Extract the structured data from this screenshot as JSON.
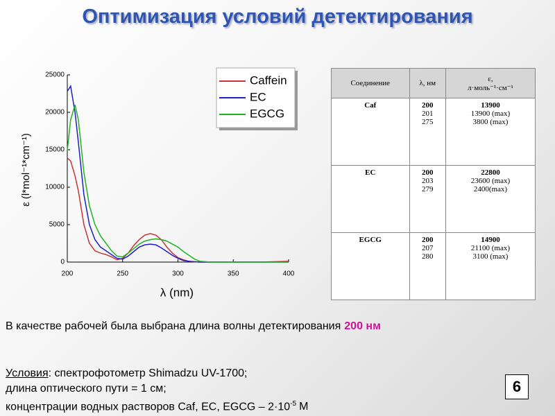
{
  "title": "Оптимизация условий детектирования",
  "chart_data": {
    "type": "line",
    "x_label": "λ (nm)",
    "y_label": "ε (l*mol⁻¹*cm⁻¹)",
    "x": [
      200,
      203,
      207,
      210,
      215,
      220,
      225,
      230,
      235,
      240,
      245,
      250,
      255,
      260,
      265,
      270,
      275,
      280,
      285,
      290,
      295,
      300,
      305,
      310,
      315,
      320,
      330,
      350,
      375,
      400
    ],
    "series": [
      {
        "name": "Caffein",
        "color": "#c83232",
        "values": [
          13900,
          13500,
          11500,
          9500,
          5000,
          2500,
          1500,
          1200,
          1000,
          700,
          300,
          500,
          1200,
          2200,
          3000,
          3600,
          3800,
          3600,
          3000,
          2000,
          1200,
          600,
          300,
          100,
          50,
          0,
          0,
          0,
          0,
          100
        ]
      },
      {
        "name": "EC",
        "color": "#1e1ec8",
        "values": [
          22800,
          23500,
          20000,
          16000,
          9000,
          5000,
          3000,
          2000,
          1500,
          1000,
          500,
          400,
          800,
          1400,
          2000,
          2300,
          2400,
          2300,
          1900,
          1400,
          900,
          500,
          200,
          100,
          50,
          0,
          0,
          0,
          0,
          0
        ]
      },
      {
        "name": "EGCG",
        "color": "#1eb41e",
        "values": [
          14900,
          19000,
          21000,
          19000,
          12000,
          7500,
          5000,
          3500,
          2500,
          1500,
          800,
          700,
          1200,
          1800,
          2400,
          2800,
          3000,
          3100,
          3000,
          2800,
          2400,
          2000,
          1400,
          900,
          400,
          100,
          0,
          0,
          0,
          0
        ]
      }
    ],
    "xlim": [
      200,
      400
    ],
    "ylim": [
      0,
      25000
    ],
    "xticks": [
      200,
      250,
      300,
      350,
      400
    ],
    "yticks": [
      0,
      5000,
      10000,
      15000,
      20000,
      25000
    ]
  },
  "table": {
    "header": [
      "Соединение",
      "λ, нм",
      "ε,",
      "л·моль⁻¹·см⁻¹"
    ],
    "rows": [
      {
        "compound": "Caf",
        "wavelengths": [
          "200",
          "201",
          "275"
        ],
        "epsilon": [
          "13900",
          "13900 (max)",
          "3800 (max)"
        ]
      },
      {
        "compound": "EC",
        "wavelengths": [
          "200",
          "203",
          "279"
        ],
        "epsilon": [
          "22800",
          "23600 (max)",
          "2400(max)"
        ]
      },
      {
        "compound": "EGCG",
        "wavelengths": [
          "200",
          "207",
          "280"
        ],
        "epsilon": [
          "14900",
          "21100 (max)",
          "3100 (max)"
        ]
      }
    ]
  },
  "conclusion": {
    "text": "В качестве рабочей была выбрана длина волны детектирования",
    "highlight": "200 нм"
  },
  "conditions": {
    "label": "Условия",
    "line1": ": спектрофотометр Shimadzu UV-1700;",
    "line2": "длина оптического пути = 1 см;",
    "line3": "концентрации водных растворов Caf, EC, EGCG – 2·10",
    "exponent": "-5",
    "unit": "M"
  },
  "page_number": "6"
}
